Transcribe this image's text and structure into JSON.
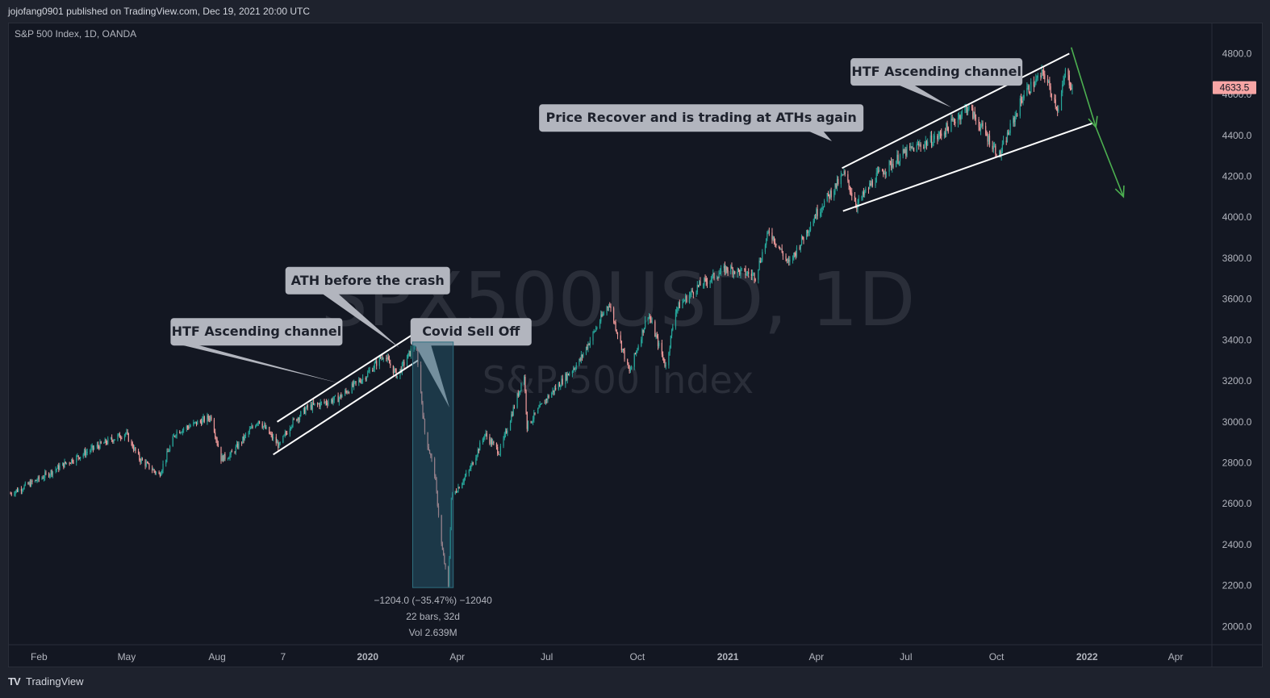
{
  "header": {
    "publisher": "jojofang0901 published on TradingView.com, Dec 19, 2021 20:00 UTC"
  },
  "footer": {
    "brand_logo": "TV",
    "brand": "TradingView"
  },
  "colors": {
    "background": "#131722",
    "up_candle": "#26a69a",
    "down_candle": "#ef9a9a",
    "price_badge": "#f7a5a5",
    "arrow": "#4caf50",
    "callout": "#b2b5be"
  },
  "chart_data": {
    "type": "candlestick",
    "symbol_label": "S&P 500 Index, 1D, OANDA",
    "watermark": {
      "symbol": "SPX500USD, 1D",
      "name": "S&P 500 Index"
    },
    "current_price_label": "4633.5",
    "current_price": 4633.5,
    "y_ticks": [
      "4800.0",
      "4600.0",
      "4400.0",
      "4200.0",
      "4000.0",
      "3800.0",
      "3600.0",
      "3400.0",
      "3200.0",
      "3000.0",
      "2800.0",
      "2600.0",
      "2400.0",
      "2200.0",
      "2000.0"
    ],
    "y_tick_values": [
      4800,
      4600,
      4400,
      4200,
      4000,
      3800,
      3600,
      3400,
      3200,
      3000,
      2800,
      2600,
      2400,
      2200,
      2000
    ],
    "ylim": [
      1950,
      4900
    ],
    "x_tick_labels": [
      "Feb",
      "May",
      "Aug",
      "7",
      "2020",
      "Apr",
      "Jul",
      "Oct",
      "2021",
      "Apr",
      "Jul",
      "Oct",
      "2022",
      "Apr"
    ],
    "x_tick_dates": [
      "2019-02-01",
      "2019-05-01",
      "2019-08-01",
      "2019-10-07",
      "2020-01-01",
      "2020-04-01",
      "2020-07-01",
      "2020-10-01",
      "2021-01-01",
      "2021-04-01",
      "2021-07-01",
      "2021-10-01",
      "2022-01-01",
      "2022-04-01"
    ],
    "price_path": [
      [
        "2019-01-03",
        2650
      ],
      [
        "2019-02-01",
        2720
      ],
      [
        "2019-03-01",
        2800
      ],
      [
        "2019-04-01",
        2880
      ],
      [
        "2019-04-30",
        2945
      ],
      [
        "2019-05-14",
        2820
      ],
      [
        "2019-06-03",
        2740
      ],
      [
        "2019-06-20",
        2950
      ],
      [
        "2019-07-26",
        3025
      ],
      [
        "2019-08-05",
        2820
      ],
      [
        "2019-08-15",
        2840
      ],
      [
        "2019-09-12",
        3010
      ],
      [
        "2019-10-03",
        2880
      ],
      [
        "2019-10-15",
        2990
      ],
      [
        "2019-11-01",
        3070
      ],
      [
        "2019-12-02",
        3115
      ],
      [
        "2019-12-31",
        3230
      ],
      [
        "2020-01-17",
        3330
      ],
      [
        "2020-01-31",
        3225
      ],
      [
        "2020-02-19",
        3390
      ],
      [
        "2020-02-28",
        2950
      ],
      [
        "2020-03-09",
        2750
      ],
      [
        "2020-03-16",
        2400
      ],
      [
        "2020-03-23",
        2190
      ],
      [
        "2020-03-26",
        2630
      ],
      [
        "2020-04-13",
        2760
      ],
      [
        "2020-04-29",
        2940
      ],
      [
        "2020-05-14",
        2850
      ],
      [
        "2020-06-08",
        3230
      ],
      [
        "2020-06-11",
        2980
      ],
      [
        "2020-07-01",
        3115
      ],
      [
        "2020-08-03",
        3295
      ],
      [
        "2020-09-02",
        3580
      ],
      [
        "2020-09-23",
        3240
      ],
      [
        "2020-10-12",
        3530
      ],
      [
        "2020-10-30",
        3270
      ],
      [
        "2020-11-09",
        3550
      ],
      [
        "2020-12-01",
        3660
      ],
      [
        "2020-12-31",
        3750
      ],
      [
        "2021-01-29",
        3715
      ],
      [
        "2021-02-12",
        3935
      ],
      [
        "2021-03-04",
        3770
      ],
      [
        "2021-04-01",
        4020
      ],
      [
        "2021-04-29",
        4210
      ],
      [
        "2021-05-12",
        4060
      ],
      [
        "2021-06-01",
        4200
      ],
      [
        "2021-07-01",
        4320
      ],
      [
        "2021-08-02",
        4390
      ],
      [
        "2021-09-02",
        4540
      ],
      [
        "2021-10-04",
        4300
      ],
      [
        "2021-10-29",
        4605
      ],
      [
        "2021-11-18",
        4705
      ],
      [
        "2021-11-30",
        4560
      ],
      [
        "2021-12-03",
        4520
      ],
      [
        "2021-12-10",
        4710
      ],
      [
        "2021-12-17",
        4633.5
      ]
    ],
    "annotations": [
      {
        "text": "HTF Ascending channel",
        "date": "2019-09-10",
        "value": 3440
      },
      {
        "text": "ATH before the crash",
        "date": "2020-01-01",
        "value": 3690
      },
      {
        "text": "Covid Sell Off",
        "date": "2020-04-15",
        "value": 3440
      },
      {
        "text": "Price Recover and is trading at ATHs again",
        "date": "2020-12-05",
        "value": 4485
      },
      {
        "text": "HTF Ascending channel",
        "date": "2021-08-01",
        "value": 4710
      }
    ],
    "channel_lines": [
      [
        [
          "2019-10-01",
          3000
        ],
        [
          "2020-02-20",
          3440
        ]
      ],
      [
        [
          "2019-09-27",
          2840
        ],
        [
          "2020-02-21",
          3300
        ]
      ],
      [
        [
          "2021-04-27",
          4240
        ],
        [
          "2021-12-14",
          4800
        ]
      ],
      [
        [
          "2021-04-28",
          4030
        ],
        [
          "2022-01-07",
          4460
        ]
      ]
    ],
    "projection_arrow": [
      [
        "2021-12-16",
        4830
      ],
      [
        "2022-01-10",
        4440
      ],
      [
        "2022-02-07",
        4100
      ]
    ],
    "measure_box": {
      "from": [
        "2020-02-19",
        3390
      ],
      "to": [
        "2020-03-23",
        2190
      ],
      "label_line1": "−1204.0 (−35.47%) −12040",
      "label_line2": "22 bars, 32d",
      "label_line3": "Vol 2.639M"
    }
  }
}
